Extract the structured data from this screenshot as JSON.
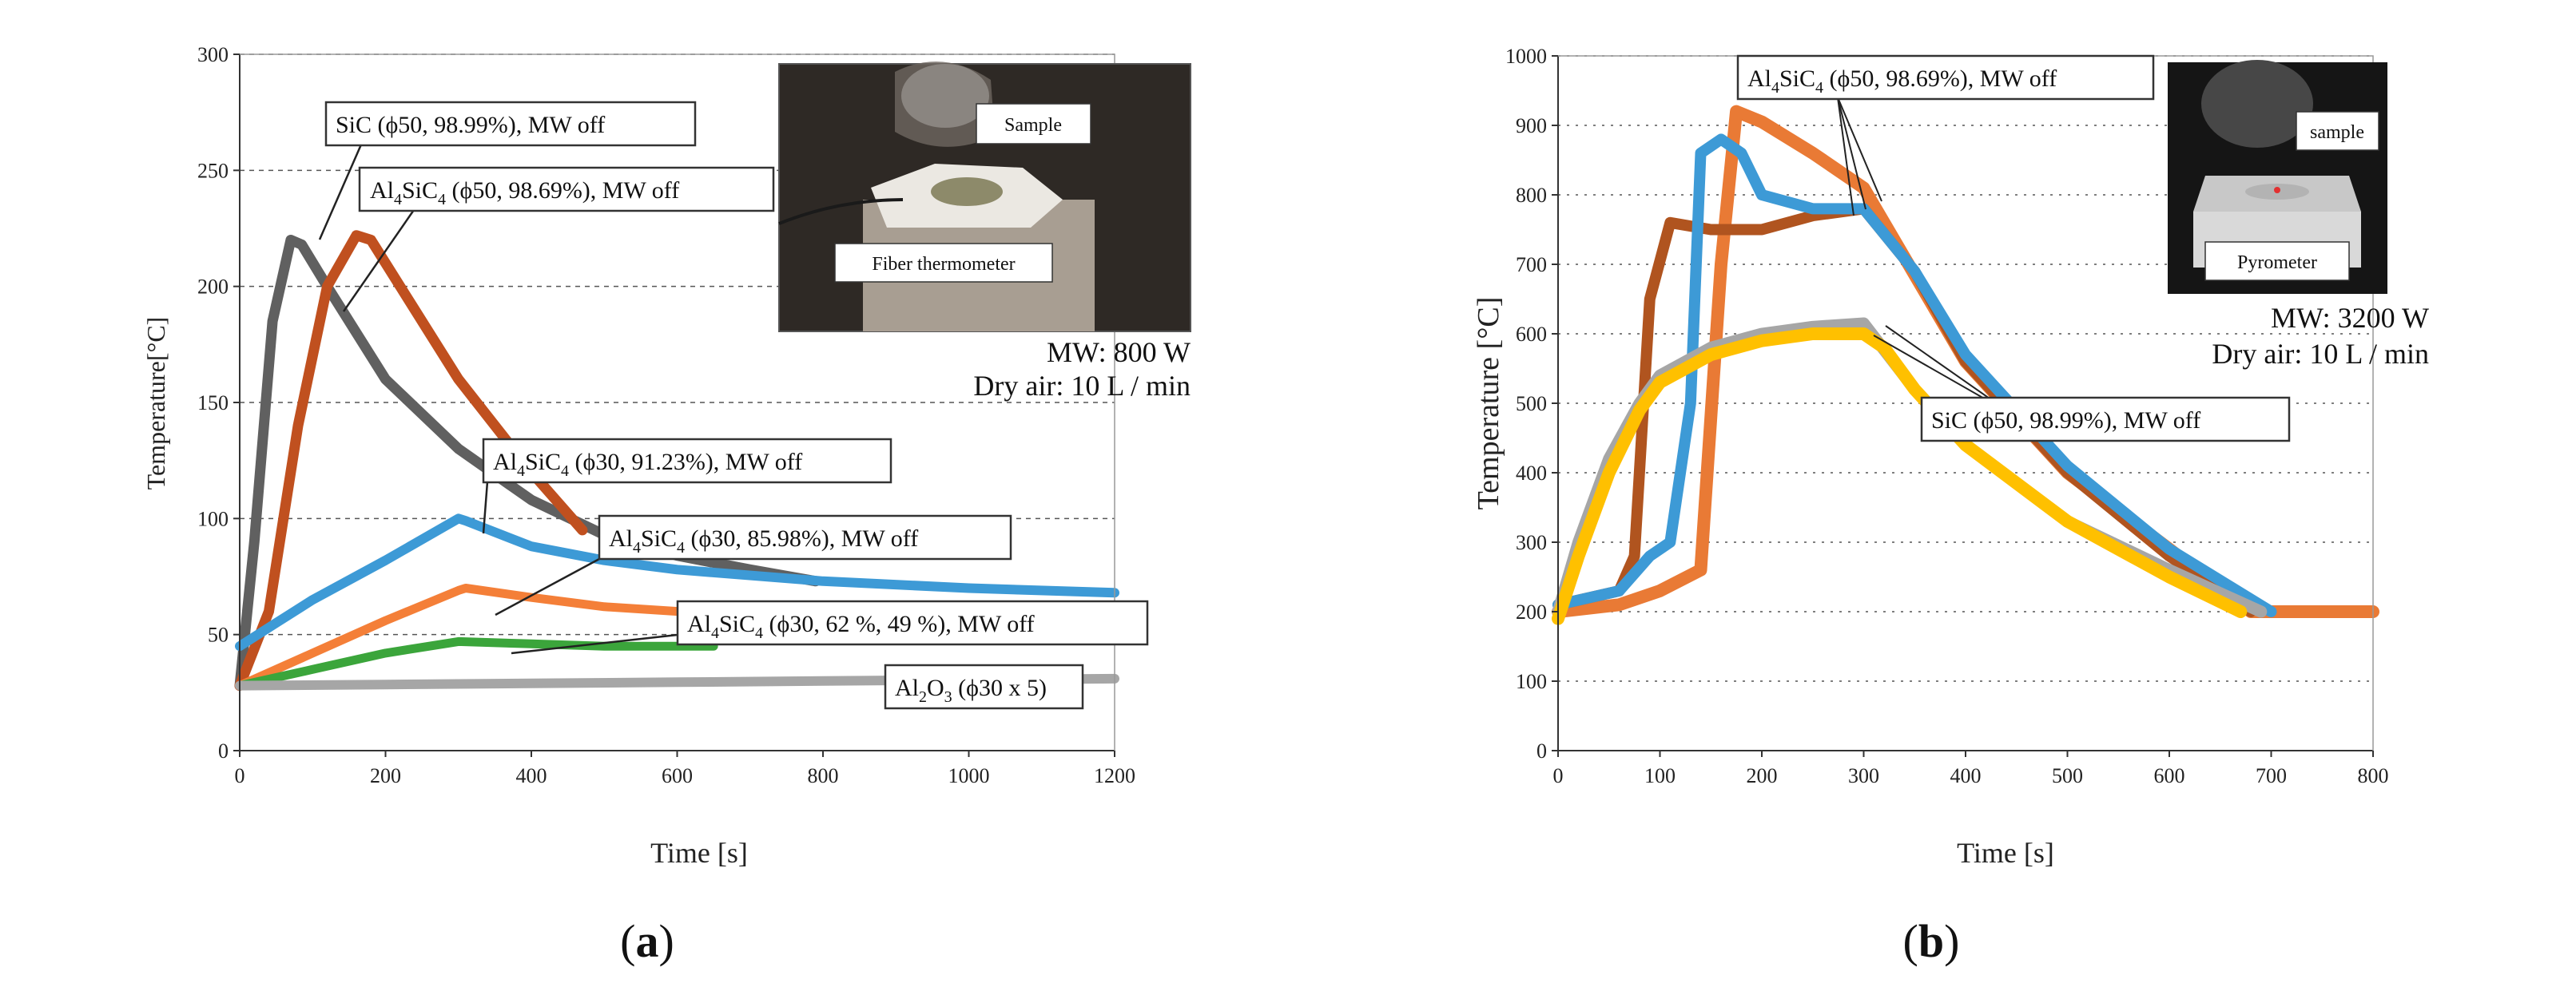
{
  "colors": {
    "sic": "#606060",
    "al4sic4_50": "#c0501f",
    "al4sic4_30_91": "#3d9ad6",
    "al4sic4_30_86": "#f47f38",
    "al4sic4_30_62": "#3ba53b",
    "al2o3": "#a6a6a6",
    "b_al4sic4": "#e97a35",
    "b_al4sic4_2": "#b0541f",
    "b_al4sic4_3": "#3d9ad6",
    "b_sic": "#ffc000",
    "b_sic_2": "#a6a6a6"
  },
  "chart_data": [
    {
      "panel": "(a)",
      "type": "line",
      "xlabel": "Time [s]",
      "ylabel": "Temperature[°C]",
      "xlim": [
        0,
        1200
      ],
      "ylim": [
        0,
        300
      ],
      "xticks": [
        "0",
        "200",
        "400",
        "600",
        "800",
        "1000",
        "1200"
      ],
      "yticks": [
        "0",
        "50",
        "100",
        "150",
        "200",
        "250",
        "300"
      ],
      "grid": "horizontal dashed",
      "series": [
        {
          "name": "SiC (ϕ50, 98.99%), MW off",
          "x": [
            0,
            20,
            45,
            70,
            85,
            120,
            200,
            300,
            400,
            500,
            600,
            700,
            790
          ],
          "y": [
            28,
            90,
            185,
            220,
            218,
            200,
            160,
            130,
            108,
            93,
            84,
            78,
            73
          ]
        },
        {
          "name": "Al₄SiC₄ (ϕ50, 98.69%), MW off",
          "x": [
            0,
            40,
            80,
            120,
            160,
            180,
            220,
            300,
            400,
            470
          ],
          "y": [
            28,
            60,
            140,
            200,
            222,
            220,
            200,
            160,
            120,
            95
          ]
        },
        {
          "name": "Al₄SiC₄ (ϕ30, 91.23%), MW off",
          "x": [
            0,
            50,
            100,
            200,
            300,
            310,
            400,
            500,
            600,
            800,
            1000,
            1200
          ],
          "y": [
            45,
            55,
            65,
            82,
            100,
            99,
            88,
            82,
            78,
            73,
            70,
            68
          ]
        },
        {
          "name": "Al₄SiC₄ (ϕ30, 85.98%), MW off",
          "x": [
            0,
            100,
            200,
            300,
            310,
            400,
            500,
            600,
            650
          ],
          "y": [
            28,
            42,
            56,
            69,
            70,
            66,
            62,
            60,
            58
          ]
        },
        {
          "name": "Al₄SiC₄ (ϕ30, 62 %, 49 %), MW off",
          "x": [
            0,
            100,
            200,
            300,
            400,
            500,
            600,
            650
          ],
          "y": [
            28,
            35,
            42,
            47,
            46,
            45,
            45,
            45
          ]
        },
        {
          "name": "Al₂O₃ (ϕ30 x 5)",
          "x": [
            0,
            200,
            400,
            600,
            800,
            1000,
            1200
          ],
          "y": [
            28,
            28.5,
            29,
            29.5,
            30,
            30.5,
            31
          ]
        }
      ],
      "annotations": [
        "MW: 800 W",
        "Dry air: 10 L / min"
      ],
      "photo_labels": [
        "Sample",
        "Fiber thermometer"
      ]
    },
    {
      "panel": "(b)",
      "type": "line",
      "xlabel": "Time [s]",
      "ylabel": "Temperature [°C]",
      "xlim": [
        0,
        800
      ],
      "ylim": [
        0,
        1000
      ],
      "xticks": [
        "0",
        "100",
        "200",
        "300",
        "400",
        "500",
        "600",
        "700",
        "800"
      ],
      "yticks": [
        "0",
        "100",
        "200",
        "300",
        "400",
        "500",
        "600",
        "700",
        "800",
        "900",
        "1000"
      ],
      "grid": "horizontal dotted",
      "series": [
        {
          "name": "Al₄SiC₄ (ϕ50, 98.69%), MW off",
          "x": [
            0,
            60,
            100,
            140,
            160,
            175,
            200,
            250,
            300,
            400,
            500,
            600,
            680,
            720,
            800
          ],
          "y": [
            200,
            210,
            230,
            260,
            700,
            920,
            905,
            860,
            810,
            560,
            400,
            290,
            200,
            200,
            200
          ]
        },
        {
          "name": "",
          "x": [
            0,
            60,
            75,
            90,
            110,
            150,
            200,
            250,
            300,
            350,
            400,
            500,
            600,
            680
          ],
          "y": [
            210,
            230,
            280,
            650,
            760,
            750,
            750,
            770,
            780,
            690,
            560,
            400,
            280,
            200
          ]
        },
        {
          "name": "",
          "x": [
            0,
            60,
            90,
            110,
            130,
            140,
            160,
            180,
            200,
            250,
            300,
            350,
            400,
            500,
            600,
            700
          ],
          "y": [
            210,
            230,
            280,
            300,
            500,
            860,
            880,
            860,
            800,
            780,
            780,
            690,
            570,
            410,
            290,
            200
          ]
        },
        {
          "name": "SiC (ϕ50, 98.99%), MW off",
          "x": [
            0,
            20,
            50,
            80,
            100,
            150,
            200,
            250,
            300,
            350,
            400,
            500,
            600,
            690
          ],
          "y": [
            200,
            300,
            420,
            500,
            540,
            580,
            600,
            610,
            615,
            520,
            440,
            330,
            260,
            200
          ]
        },
        {
          "name": "",
          "x": [
            0,
            20,
            50,
            80,
            100,
            150,
            200,
            250,
            300,
            320,
            350,
            400,
            500,
            600,
            670
          ],
          "y": [
            190,
            280,
            400,
            490,
            530,
            570,
            590,
            600,
            600,
            580,
            520,
            440,
            330,
            250,
            200
          ]
        }
      ],
      "annotations": [
        "MW: 3200 W",
        "Dry air: 10 L / min"
      ],
      "photo_labels": [
        "sample",
        "Pyrometer"
      ]
    }
  ],
  "labels": {
    "a": {
      "tag_open": "(",
      "tag_letter": "a",
      "tag_close": ")",
      "xlabel": "Time [s]",
      "ylabel": "Temperature[°C]",
      "mw": "MW: 800 W",
      "air": "Dry air: 10 L / min",
      "photo_sample": "Sample",
      "photo_thermo": "Fiber thermometer",
      "c_sic": {
        "pre": "SiC (ϕ50, 98.99%), MW off"
      },
      "c_50": {
        "p1": "Al",
        "s1": "4",
        "p2": "SiC",
        "s2": "4",
        "p3": " (ϕ50, 98.69%), MW off"
      },
      "c_91": {
        "p1": "Al",
        "s1": "4",
        "p2": "SiC",
        "s2": "4",
        "p3": " (ϕ30, 91.23%), MW off"
      },
      "c_86": {
        "p1": "Al",
        "s1": "4",
        "p2": "SiC",
        "s2": "4",
        "p3": " (ϕ30, 85.98%), MW off"
      },
      "c_62": {
        "p1": "Al",
        "s1": "4",
        "p2": "SiC",
        "s2": "4",
        "p3": " (ϕ30, 62 %, 49 %), MW off"
      },
      "c_al2o3": {
        "p1": "Al",
        "s1": "2",
        "p2": "O",
        "s2": "3",
        "p3": " (ϕ30 x 5)"
      }
    },
    "b": {
      "tag_open": "(",
      "tag_letter": "b",
      "tag_close": ")",
      "xlabel": "Time [s]",
      "ylabel": "Temperature [°C]",
      "mw": "MW: 3200 W",
      "air": "Dry air: 10 L / min",
      "photo_sample": "sample",
      "photo_pyro": "Pyrometer",
      "c_50": {
        "p1": "Al",
        "s1": "4",
        "p2": "SiC",
        "s2": "4",
        "p3": " (ϕ50, 98.69%), MW off"
      },
      "c_sic": {
        "pre": "SiC (ϕ50, 98.99%), MW off"
      }
    }
  }
}
